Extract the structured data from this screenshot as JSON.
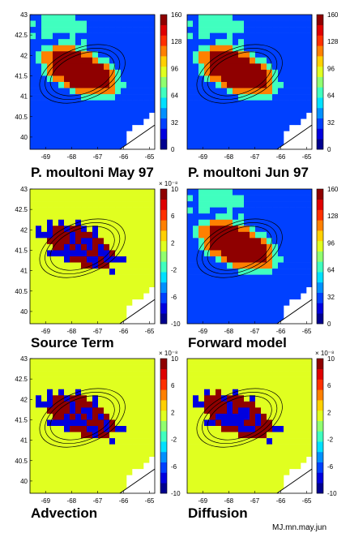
{
  "footer_note": "MJ.mn.may.jun",
  "colorbar_colors": [
    "#00008f",
    "#0000df",
    "#0040ff",
    "#0090ff",
    "#00e0ff",
    "#40ffbf",
    "#90ff70",
    "#e0ff20",
    "#ffd000",
    "#ff8000",
    "#ff3000",
    "#df0000",
    "#8f0000"
  ],
  "chart_data": [
    {
      "type": "heatmap",
      "title": "P. moultoni  May 97",
      "xticks": [
        "-69",
        "-68",
        "-67",
        "-66",
        "-65"
      ],
      "yticks": [
        "43",
        "42.5",
        "42",
        "41.5",
        "41",
        "40.5",
        "40"
      ],
      "xlim": [
        -69.6,
        -64.8
      ],
      "ylim": [
        39.7,
        43.0
      ],
      "colorbar_ticks": [
        "160",
        "128",
        "96",
        "64",
        "32",
        "0"
      ],
      "colorbar_exponent": "",
      "clim": [
        0,
        160
      ],
      "pattern": "density"
    },
    {
      "type": "heatmap",
      "title": "P. moultoni  Jun 97",
      "xticks": [
        "-69",
        "-68",
        "-67",
        "-66",
        "-65"
      ],
      "yticks": [],
      "xlim": [
        -69.6,
        -64.8
      ],
      "ylim": [
        39.7,
        43.0
      ],
      "colorbar_ticks": [
        "160",
        "128",
        "96",
        "64",
        "32",
        "0"
      ],
      "colorbar_exponent": "",
      "clim": [
        0,
        160
      ],
      "pattern": "density"
    },
    {
      "type": "heatmap",
      "title": "Source Term",
      "xticks": [
        "-69",
        "-68",
        "-67",
        "-66",
        "-65"
      ],
      "yticks": [
        "43",
        "42.5",
        "42",
        "41.5",
        "41",
        "40.5",
        "40"
      ],
      "xlim": [
        -69.6,
        -64.8
      ],
      "ylim": [
        39.7,
        43.0
      ],
      "colorbar_ticks": [
        "10",
        "6",
        "2",
        "-2",
        "-6",
        "-10"
      ],
      "colorbar_exponent": "× 10⁻⁸",
      "clim": [
        -10,
        10
      ],
      "pattern": "source"
    },
    {
      "type": "heatmap",
      "title": "Forward model",
      "xticks": [
        "-69",
        "-68",
        "-67",
        "-66",
        "-65"
      ],
      "yticks": [],
      "xlim": [
        -69.6,
        -64.8
      ],
      "ylim": [
        39.7,
        43.0
      ],
      "colorbar_ticks": [
        "160",
        "128",
        "96",
        "64",
        "32",
        "0"
      ],
      "colorbar_exponent": "",
      "clim": [
        0,
        160
      ],
      "pattern": "density"
    },
    {
      "type": "heatmap",
      "title": "Advection",
      "xticks": [
        "-69",
        "-68",
        "-67",
        "-66",
        "-65"
      ],
      "yticks": [
        "43",
        "42.5",
        "42",
        "41.5",
        "41",
        "40.5",
        "40"
      ],
      "xlim": [
        -69.6,
        -64.8
      ],
      "ylim": [
        39.7,
        43.0
      ],
      "colorbar_ticks": [
        "10",
        "6",
        "2",
        "-2",
        "-6",
        "-10"
      ],
      "colorbar_exponent": "× 10⁻⁸",
      "clim": [
        -10,
        10
      ],
      "pattern": "advection"
    },
    {
      "type": "heatmap",
      "title": "Diffusion",
      "xticks": [
        "-69",
        "-68",
        "-67",
        "-66",
        "-65"
      ],
      "yticks": [],
      "xlim": [
        -69.6,
        -64.8
      ],
      "ylim": [
        39.7,
        43.0
      ],
      "colorbar_ticks": [
        "10",
        "6",
        "2",
        "-2",
        "-6",
        "-10"
      ],
      "colorbar_exponent": "× 10⁻⁸",
      "clim": [
        -10,
        10
      ],
      "pattern": "diffusion"
    }
  ]
}
